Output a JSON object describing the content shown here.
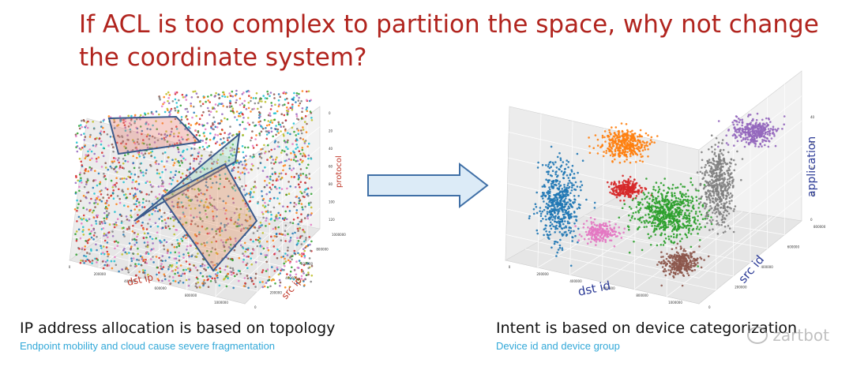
{
  "title": "If ACL is too complex to partition the space, why not change the coordinate system?",
  "left": {
    "caption": "IP address allocation is based on topology",
    "subcaption": "Endpoint mobility and cloud cause severe fragmentation",
    "axes": {
      "x": "dst ip",
      "y": "src ip",
      "z": "protocol"
    },
    "x_ticks": [
      "0",
      "200000",
      "400000",
      "600000",
      "800000",
      "1000000"
    ],
    "y_ticks": [
      "0",
      "200000",
      "400000",
      "600000",
      "800000",
      "1000000"
    ],
    "z_ticks": [
      "0",
      "20",
      "40",
      "60",
      "80",
      "100",
      "120"
    ]
  },
  "right": {
    "caption": "Intent is based on device categorization",
    "subcaption": "Device id and device group",
    "axes": {
      "x": "dst id",
      "y": "src id",
      "z": "application"
    },
    "x_ticks": [
      "0",
      "200000",
      "400000",
      "600000",
      "800000",
      "1000000"
    ],
    "y_ticks": [
      "0",
      "200000",
      "400000",
      "600000",
      "800000"
    ],
    "z_ticks": [
      "0",
      "10",
      "20",
      "30",
      "40"
    ],
    "cluster_colors": [
      "#1f77b4",
      "#ff7f0e",
      "#d62728",
      "#2ca02c",
      "#7f7f7f",
      "#9467bd",
      "#e377c2",
      "#8c564b"
    ]
  },
  "watermark": "zartbot",
  "colors": {
    "title": "#b1241e",
    "subcaption": "#32a8d8",
    "arrow_fill": "#dcebf7",
    "arrow_stroke": "#3f6fa6",
    "plane_stroke": "#3a5a8c"
  }
}
